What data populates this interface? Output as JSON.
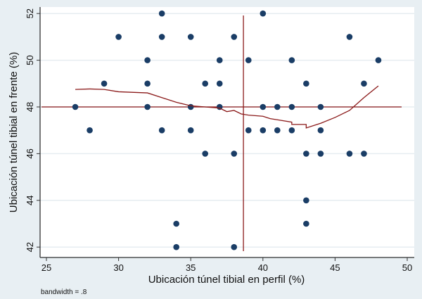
{
  "chart_data": {
    "type": "scatter",
    "xlabel": "Ubicación túnel tibial en perfil (%)",
    "ylabel": "Ubicación túnel tibial en frente (%)",
    "xlim": [
      24.5,
      50.5
    ],
    "ylim": [
      41.8,
      52.3
    ],
    "xticks": [
      "25",
      "30",
      "35",
      "40",
      "45",
      "50"
    ],
    "yticks": [
      "42",
      "44",
      "46",
      "48",
      "50",
      "52"
    ],
    "grid": true,
    "note": "bandwidth = .8",
    "points": [
      [
        33,
        52
      ],
      [
        40,
        52
      ],
      [
        30,
        51
      ],
      [
        33,
        51
      ],
      [
        35,
        51
      ],
      [
        38,
        51
      ],
      [
        46,
        51
      ],
      [
        32,
        50
      ],
      [
        37,
        50
      ],
      [
        39,
        50
      ],
      [
        42,
        50
      ],
      [
        48,
        50
      ],
      [
        29,
        49
      ],
      [
        32,
        49
      ],
      [
        36,
        49
      ],
      [
        37,
        49
      ],
      [
        43,
        49
      ],
      [
        47,
        49
      ],
      [
        27,
        48
      ],
      [
        32,
        48
      ],
      [
        35,
        48
      ],
      [
        37,
        48
      ],
      [
        40,
        48
      ],
      [
        41,
        48
      ],
      [
        42,
        48
      ],
      [
        44,
        48
      ],
      [
        28,
        47
      ],
      [
        33,
        47
      ],
      [
        35,
        47
      ],
      [
        39,
        47
      ],
      [
        40,
        47
      ],
      [
        41,
        47
      ],
      [
        42,
        47
      ],
      [
        44,
        47
      ],
      [
        36,
        46
      ],
      [
        38,
        46
      ],
      [
        43,
        46
      ],
      [
        44,
        46
      ],
      [
        46,
        46
      ],
      [
        47,
        46
      ],
      [
        43,
        44
      ],
      [
        34,
        43
      ],
      [
        43,
        43
      ],
      [
        34,
        42
      ],
      [
        38,
        42
      ]
    ],
    "lowess": [
      [
        27,
        48.75
      ],
      [
        28,
        48.77
      ],
      [
        29,
        48.75
      ],
      [
        30,
        48.65
      ],
      [
        32,
        48.6
      ],
      [
        33,
        48.4
      ],
      [
        34,
        48.2
      ],
      [
        35,
        48.05
      ],
      [
        36,
        48.0
      ],
      [
        37,
        47.95
      ],
      [
        37.5,
        47.8
      ],
      [
        38,
        47.85
      ],
      [
        38.5,
        47.7
      ],
      [
        39,
        47.65
      ],
      [
        40,
        47.6
      ],
      [
        40.5,
        47.5
      ],
      [
        41,
        47.45
      ],
      [
        42,
        47.35
      ],
      [
        42,
        47.25
      ],
      [
        43,
        47.25
      ],
      [
        43,
        47.1
      ],
      [
        44,
        47.3
      ],
      [
        45,
        47.55
      ],
      [
        46,
        47.85
      ],
      [
        47,
        48.4
      ],
      [
        48,
        48.9
      ]
    ],
    "hline": 48,
    "vline": 38.65,
    "colors": {
      "points": "#1a3d66",
      "lines": "#8b1a1a",
      "bg": "#e8eff3"
    }
  }
}
